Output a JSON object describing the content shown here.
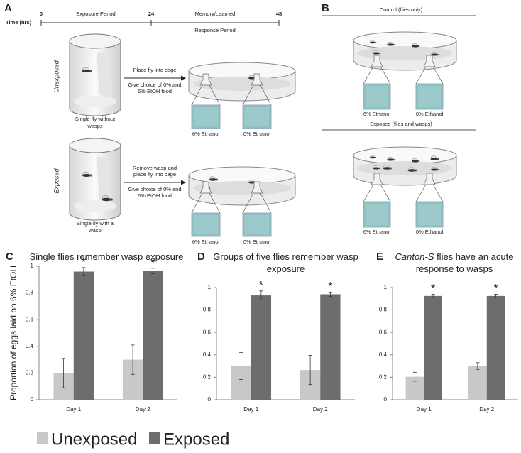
{
  "panels": {
    "a": "A",
    "b": "B"
  },
  "timeline": {
    "label": "Time (hrs)",
    "ticks": [
      0,
      24,
      48
    ],
    "exposure": "Exposure Period",
    "memory": "Memory/Learned",
    "response": "Response Period"
  },
  "panel_a": {
    "unexposed": {
      "condition": "Unexposed",
      "caption": [
        "Single fly without",
        "wasps"
      ],
      "arrow_top": [
        "Place fly into cage"
      ],
      "arrow_bottom": [
        "Give choice of 0% and",
        "6% EtOH food"
      ],
      "food": [
        "6% Ethanol",
        "0% Ethanol"
      ]
    },
    "exposed": {
      "condition": "Exposed",
      "caption": [
        "Single fly with a",
        "wasp"
      ],
      "arrow_top": [
        "Remove wasp and",
        "place fly into cage"
      ],
      "arrow_bottom": [
        "Give choice of 0% and",
        "6% EtOH food"
      ],
      "food": [
        "6% Ethanol",
        "0% Ethanol"
      ]
    }
  },
  "panel_b": {
    "control": {
      "title": "Control (flies only)",
      "food": [
        "6% Ethanol",
        "0% Ethanol"
      ]
    },
    "exposed": {
      "title": "Exposed (flies and wasps)",
      "food": [
        "6% Ethanol",
        "0% Ethanol"
      ]
    }
  },
  "chart_data": [
    {
      "type": "bar",
      "panel": "C",
      "title": "Single flies remember wasp exposure",
      "y_label": "Proportion of eggs laid on 6% EtOH",
      "categories": [
        "Day 1",
        "Day 2"
      ],
      "ylim": [
        0,
        1
      ],
      "yticks": [
        0,
        0.2,
        0.4,
        0.6,
        0.8,
        1
      ],
      "grid": false,
      "series": [
        {
          "name": "Unexposed",
          "color": "#c8c8c8",
          "values": [
            0.2,
            0.3
          ],
          "errors": [
            0.11,
            0.11
          ]
        },
        {
          "name": "Exposed",
          "color": "#6d6d6d",
          "values": [
            0.96,
            0.965
          ],
          "errors": [
            0.03,
            0.02
          ]
        }
      ],
      "significance": [
        "*",
        "*"
      ]
    },
    {
      "type": "bar",
      "panel": "D",
      "title": "Groups of five flies remember wasp exposure",
      "categories": [
        "Day 1",
        "Day 2"
      ],
      "ylim": [
        0,
        1
      ],
      "yticks": [
        0,
        0.2,
        0.4,
        0.6,
        0.8,
        1
      ],
      "grid": false,
      "series": [
        {
          "color": "#c8c8c8",
          "values": [
            0.3,
            0.265
          ],
          "errors": [
            0.12,
            0.13
          ]
        },
        {
          "color": "#6d6d6d",
          "values": [
            0.93,
            0.94
          ],
          "errors": [
            0.04,
            0.02
          ]
        }
      ],
      "significance": [
        "*",
        "*"
      ]
    },
    {
      "type": "bar",
      "panel": "E",
      "title_italic": "Canton-S",
      "title": "flies have an acute response to wasps",
      "categories": [
        "Day 1",
        "Day 2"
      ],
      "ylim": [
        0,
        1
      ],
      "yticks": [
        0,
        0.2,
        0.4,
        0.6,
        0.8,
        1
      ],
      "grid": false,
      "series": [
        {
          "color": "#c8c8c8",
          "values": [
            0.205,
            0.3
          ],
          "errors": [
            0.04,
            0.03
          ]
        },
        {
          "color": "#6d6d6d",
          "values": [
            0.925,
            0.925
          ],
          "errors": [
            0.015,
            0.015
          ]
        }
      ],
      "significance": [
        "*",
        "*"
      ]
    }
  ]
}
